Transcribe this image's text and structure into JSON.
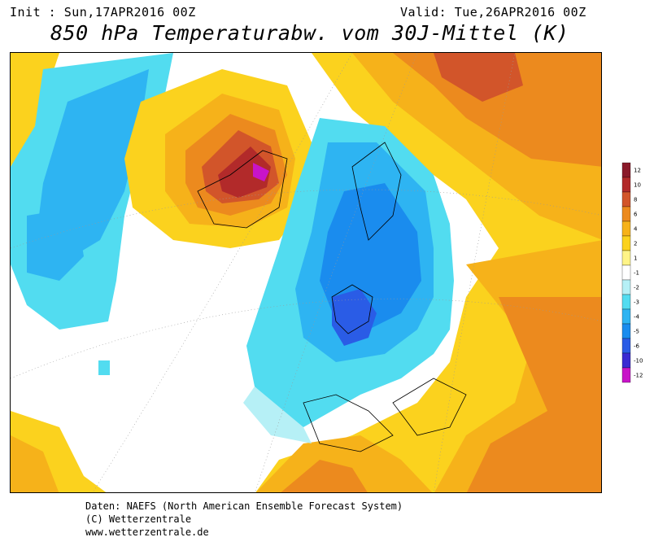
{
  "header": {
    "init": "Init : Sun,17APR2016 00Z",
    "valid": "Valid: Tue,26APR2016 00Z",
    "title": "850 hPa Temperaturabw. vom 30J-Mittel (K)"
  },
  "footer": {
    "line1": "Daten: NAEFS (North American Ensemble Forecast System)",
    "line2": "(C) Wetterzentrale",
    "line3": "www.wetterzentrale.de"
  },
  "legend": {
    "levels": [
      {
        "label": "12",
        "color": "#8a1a2a"
      },
      {
        "label": "10",
        "color": "#b22a2a"
      },
      {
        "label": "8",
        "color": "#d2552a"
      },
      {
        "label": "6",
        "color": "#ec8a1e"
      },
      {
        "label": "4",
        "color": "#f6b21a"
      },
      {
        "label": "2",
        "color": "#fbd21e"
      },
      {
        "label": "1",
        "color": "#fff488"
      },
      {
        "label": "-1",
        "color": "#ffffff"
      },
      {
        "label": "-2",
        "color": "#b6f0f6"
      },
      {
        "label": "-3",
        "color": "#52dcf0"
      },
      {
        "label": "-4",
        "color": "#2eb4f2"
      },
      {
        "label": "-5",
        "color": "#1a8cee"
      },
      {
        "label": "-6",
        "color": "#2a5ce6"
      },
      {
        "label": "-10",
        "color": "#3a2ad2"
      },
      {
        "label": "-12",
        "color": "#c814c8"
      }
    ]
  }
}
